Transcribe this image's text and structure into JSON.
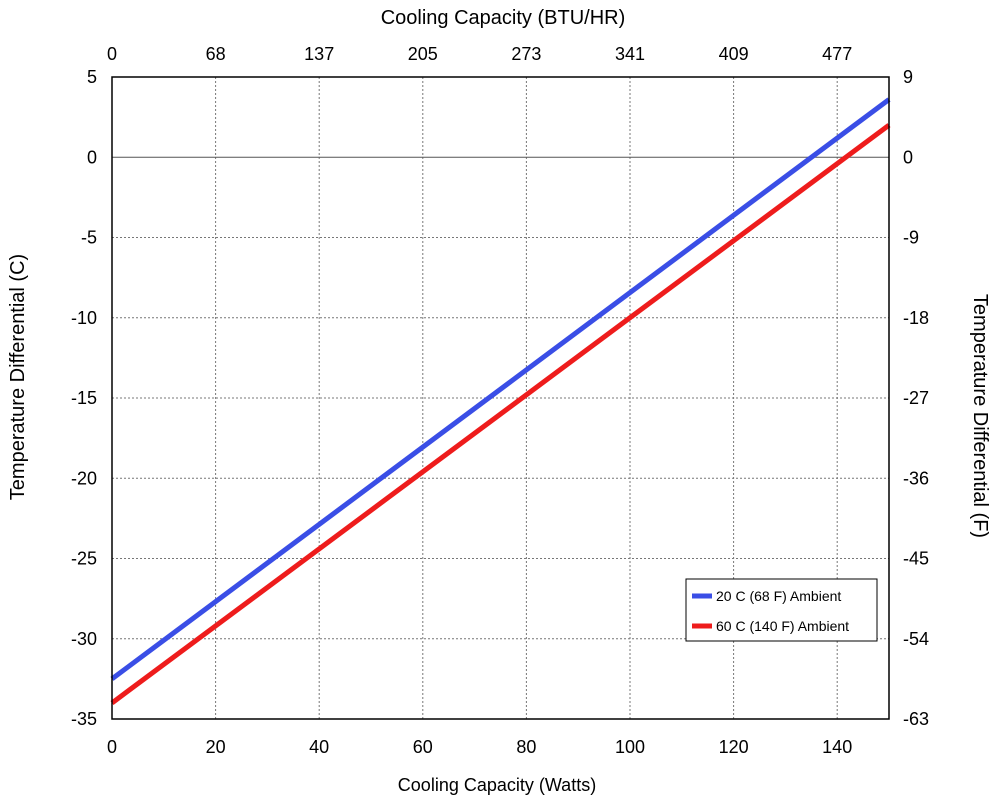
{
  "chart_data": {
    "type": "line",
    "xlabel_bottom": "Cooling Capacity (Watts)",
    "xlabel_top": "Cooling Capacity (BTU/HR)",
    "ylabel_left": "Temperature Differential (C)",
    "ylabel_right": "Temperature Differential (F)",
    "xlim": [
      0,
      150
    ],
    "ylim": [
      -35,
      5
    ],
    "x_ticks": [
      0,
      20,
      40,
      60,
      80,
      100,
      120,
      140
    ],
    "y_ticks": [
      5,
      0,
      -5,
      -10,
      -15,
      -20,
      -25,
      -30,
      -35
    ],
    "top_ticks": [
      {
        "x": 0,
        "label": "0"
      },
      {
        "x": 20,
        "label": "68"
      },
      {
        "x": 40,
        "label": "137"
      },
      {
        "x": 60,
        "label": "205"
      },
      {
        "x": 80,
        "label": "273"
      },
      {
        "x": 100,
        "label": "341"
      },
      {
        "x": 120,
        "label": "409"
      },
      {
        "x": 140,
        "label": "477"
      }
    ],
    "right_ticks": [
      {
        "y": 5,
        "label": "9"
      },
      {
        "y": 0,
        "label": "0"
      },
      {
        "y": -5,
        "label": "-9"
      },
      {
        "y": -10,
        "label": "-18"
      },
      {
        "y": -15,
        "label": "-27"
      },
      {
        "y": -20,
        "label": "-36"
      },
      {
        "y": -25,
        "label": "-45"
      },
      {
        "y": -30,
        "label": "-54"
      },
      {
        "y": -35,
        "label": "-63"
      }
    ],
    "grid": true,
    "legend_position": "bottom-right",
    "series": [
      {
        "name": "20 C (68 F) Ambient",
        "color": "#3a4ee6",
        "x": [
          0,
          150
        ],
        "y": [
          -32.5,
          3.6
        ]
      },
      {
        "name": "60 C (140 F) Ambient",
        "color": "#ee1c1c",
        "x": [
          0,
          150
        ],
        "y": [
          -34.0,
          2.0
        ]
      }
    ]
  }
}
